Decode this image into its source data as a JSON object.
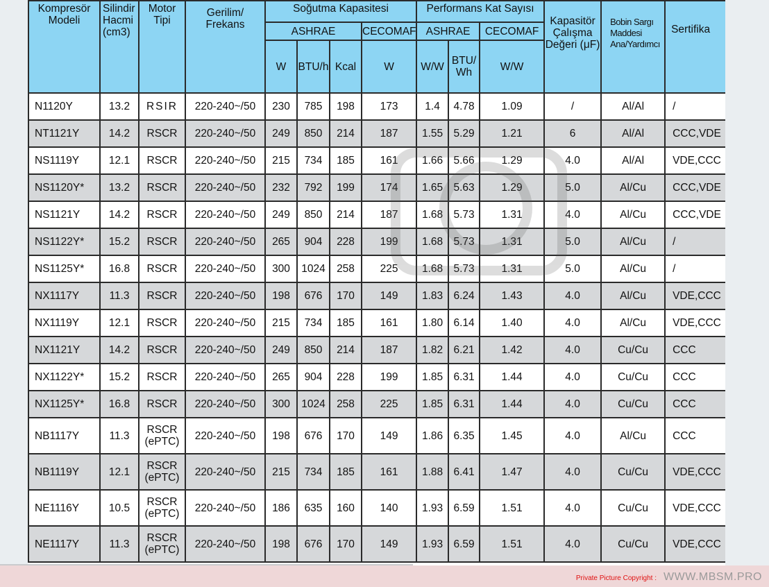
{
  "header": {
    "model": "Kompresör Modeli",
    "displacement": "Silindir Hacmi (cm3)",
    "motor": "Motor Tipi",
    "voltage": "Gerilim/ Frekans",
    "cooling_capacity": "Soğutma Kapasitesi",
    "performance": "Performans Kat Sayısı",
    "ashrae": "ASHRAE",
    "cecomaf": "CECOMAF",
    "capacitor": "Kapasitör Çalışma Değeri (μF)",
    "winding": "Bobin Sargı Maddesi Ana/Yardımcı",
    "certificate": "Sertifika",
    "units": {
      "w": "W",
      "btuh": "BTU/h",
      "kcal": "Kcal",
      "cw": "W",
      "ww": "W/W",
      "btuwh": "BTU/ Wh",
      "cww": "W/W"
    }
  },
  "rows": [
    [
      "N1120Y",
      "13.2",
      "RSIR",
      "220-240~/50",
      "230",
      "785",
      "198",
      "173",
      "1.4",
      "4.78",
      "1.09",
      "/",
      "Al/Al",
      "/"
    ],
    [
      "NT1121Y",
      "14.2",
      "RSCR",
      "220-240~/50",
      "249",
      "850",
      "214",
      "187",
      "1.55",
      "5.29",
      "1.21",
      "6",
      "Al/Al",
      "CCC,VDE"
    ],
    [
      "NS1119Y",
      "12.1",
      "RSCR",
      "220-240~/50",
      "215",
      "734",
      "185",
      "161",
      "1.66",
      "5.66",
      "1.29",
      "4.0",
      "Al/Al",
      "VDE,CCC"
    ],
    [
      "NS1120Y*",
      "13.2",
      "RSCR",
      "220-240~/50",
      "232",
      "792",
      "199",
      "174",
      "1.65",
      "5.63",
      "1.29",
      "5.0",
      "Al/Cu",
      "CCC,VDE"
    ],
    [
      "NS1121Y",
      "14.2",
      "RSCR",
      "220-240~/50",
      "249",
      "850",
      "214",
      "187",
      "1.68",
      "5.73",
      "1.31",
      "4.0",
      "Al/Cu",
      "CCC,VDE"
    ],
    [
      "NS1122Y*",
      "15.2",
      "RSCR",
      "220-240~/50",
      "265",
      "904",
      "228",
      "199",
      "1.68",
      "5.73",
      "1.31",
      "5.0",
      "Al/Cu",
      "/"
    ],
    [
      "NS1125Y*",
      "16.8",
      "RSCR",
      "220-240~/50",
      "300",
      "1024",
      "258",
      "225",
      "1.68",
      "5.73",
      "1.31",
      "5.0",
      "Al/Cu",
      "/"
    ],
    [
      "NX1117Y",
      "11.3",
      "RSCR",
      "220-240~/50",
      "198",
      "676",
      "170",
      "149",
      "1.83",
      "6.24",
      "1.43",
      "4.0",
      "Al/Cu",
      "VDE,CCC"
    ],
    [
      "NX1119Y",
      "12.1",
      "RSCR",
      "220-240~/50",
      "215",
      "734",
      "185",
      "161",
      "1.80",
      "6.14",
      "1.40",
      "4.0",
      "Al/Cu",
      "VDE,CCC"
    ],
    [
      "NX1121Y",
      "14.2",
      "RSCR",
      "220-240~/50",
      "249",
      "850",
      "214",
      "187",
      "1.82",
      "6.21",
      "1.42",
      "4.0",
      "Cu/Cu",
      "CCC"
    ],
    [
      "NX1122Y*",
      "15.2",
      "RSCR",
      "220-240~/50",
      "265",
      "904",
      "228",
      "199",
      "1.85",
      "6.31",
      "1.44",
      "4.0",
      "Cu/Cu",
      "CCC"
    ],
    [
      "NX1125Y*",
      "16.8",
      "RSCR",
      "220-240~/50",
      "300",
      "1024",
      "258",
      "225",
      "1.85",
      "6.31",
      "1.44",
      "4.0",
      "Cu/Cu",
      "CCC"
    ],
    [
      "NB1117Y",
      "11.3",
      "RSCR (ePTC)",
      "220-240~/50",
      "198",
      "676",
      "170",
      "149",
      "1.86",
      "6.35",
      "1.45",
      "4.0",
      "Al/Cu",
      "CCC"
    ],
    [
      "NB1119Y",
      "12.1",
      "RSCR (ePTC)",
      "220-240~/50",
      "215",
      "734",
      "185",
      "161",
      "1.88",
      "6.41",
      "1.47",
      "4.0",
      "Cu/Cu",
      "VDE,CCC"
    ],
    [
      "NE1116Y",
      "10.5",
      "RSCR (ePTC)",
      "220-240~/50",
      "186",
      "635",
      "160",
      "140",
      "1.93",
      "6.59",
      "1.51",
      "4.0",
      "Cu/Cu",
      "VDE,CCC"
    ],
    [
      "NE1117Y",
      "11.3",
      "RSCR (ePTC)",
      "220-240~/50",
      "198",
      "676",
      "170",
      "149",
      "1.93",
      "6.59",
      "1.51",
      "4.0",
      "Cu/Cu",
      "VDE,CCC"
    ]
  ],
  "watermark": "WWW.MBSM.PRO",
  "footer": {
    "copyright": "Private Picture Copyright :",
    "site": "WWW.MBSM.PRO"
  },
  "colors": {
    "header_bg": "#8dd5f3",
    "alt_row": "#d6d8da",
    "watermark": "#f07060"
  }
}
